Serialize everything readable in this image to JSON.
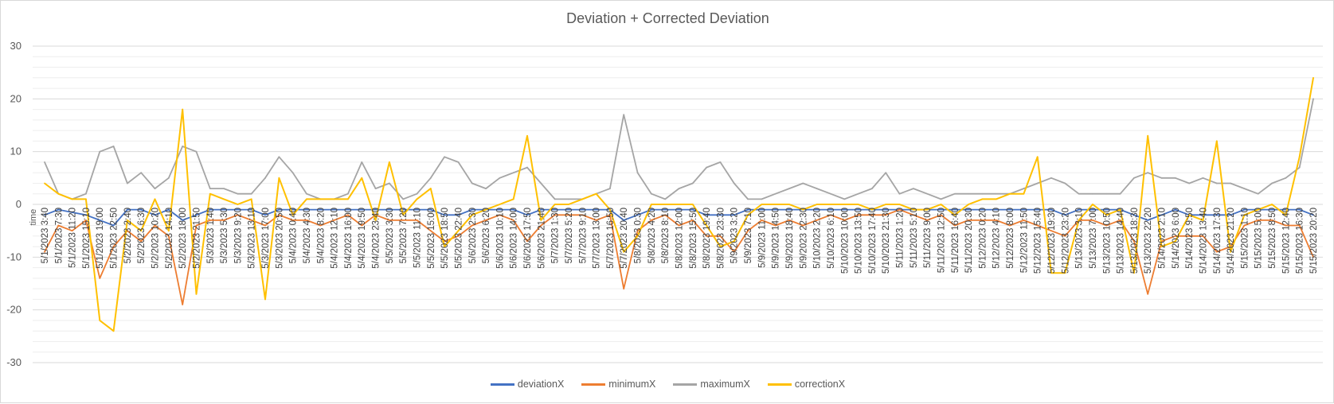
{
  "chart_data": {
    "type": "line",
    "title": "Deviation + Corrected Deviation",
    "xlabel": "time",
    "ylabel": "",
    "ylim": [
      -30,
      30
    ],
    "yticks": [
      30,
      20,
      10,
      0,
      -10,
      -20,
      -30
    ],
    "grid": true,
    "legend_position": "bottom",
    "x": [
      "5/1/2023 3:40",
      "5/1/2023 7:30",
      "5/1/2023 11:20",
      "5/1/2023 15:10",
      "5/1/2023 19:00",
      "5/1/2023 22:50",
      "5/2/2023 2:40",
      "5/2/2023 6:30",
      "5/2/2023 10:20",
      "5/2/2023 14:10",
      "5/2/2023 18:00",
      "5/2/2023 21:50",
      "5/3/2023 1:40",
      "5/3/2023 5:30",
      "5/3/2023 9:20",
      "5/3/2023 13:10",
      "5/3/2023 17:00",
      "5/3/2023 20:50",
      "5/4/2023 0:40",
      "5/4/2023 4:30",
      "5/4/2023 8:20",
      "5/4/2023 12:10",
      "5/4/2023 16:00",
      "5/4/2023 19:50",
      "5/4/2023 23:40",
      "5/5/2023 3:30",
      "5/5/2023 7:20",
      "5/5/2023 11:10",
      "5/5/2023 15:00",
      "5/5/2023 18:50",
      "5/5/2023 22:40",
      "5/6/2023 2:30",
      "5/6/2023 6:20",
      "5/6/2023 10:10",
      "5/6/2023 14:00",
      "5/6/2023 17:50",
      "5/6/2023 21:40",
      "5/7/2023 1:30",
      "5/7/2023 5:20",
      "5/7/2023 9:10",
      "5/7/2023 13:00",
      "5/7/2023 16:50",
      "5/7/2023 20:40",
      "5/8/2023 0:30",
      "5/8/2023 4:20",
      "5/8/2023 8:10",
      "5/8/2023 12:00",
      "5/8/2023 15:50",
      "5/8/2023 19:40",
      "5/8/2023 23:30",
      "5/9/2023 3:20",
      "5/9/2023 7:10",
      "5/9/2023 11:00",
      "5/9/2023 14:50",
      "5/9/2023 18:40",
      "5/9/2023 22:30",
      "5/10/2023 2:20",
      "5/10/2023 6:10",
      "5/10/2023 10:00",
      "5/10/2023 13:50",
      "5/10/2023 17:40",
      "5/10/2023 21:30",
      "5/11/2023 1:20",
      "5/11/2023 5:10",
      "5/11/2023 9:00",
      "5/11/2023 12:50",
      "5/11/2023 16:40",
      "5/11/2023 20:30",
      "5/12/2023 0:20",
      "5/12/2023 4:10",
      "5/12/2023 8:00",
      "5/12/2023 11:50",
      "5/12/2023 15:40",
      "5/12/2023 19:30",
      "5/12/2023 23:20",
      "5/13/2023 3:10",
      "5/13/2023 7:00",
      "5/13/2023 10:50",
      "5/13/2023 14:40",
      "5/13/2023 18:30",
      "5/13/2023 22:20",
      "5/14/2023 2:10",
      "5/14/2023 6:00",
      "5/14/2023 9:50",
      "5/14/2023 13:40",
      "5/14/2023 17:30",
      "5/14/2023 21:20",
      "5/15/2023 1:10",
      "5/15/2023 5:00",
      "5/15/2023 8:50",
      "5/15/2023 12:40",
      "5/15/2023 16:30",
      "5/15/2023 20:20"
    ],
    "series": [
      {
        "name": "deviationX",
        "color": "#4472c4",
        "values": [
          -2,
          -1,
          -1.5,
          -2,
          -3,
          -4,
          -1,
          -1,
          -2,
          -1,
          -3,
          -2,
          -1,
          -1,
          -1,
          -1,
          -2,
          -1,
          -1,
          -1,
          -1,
          -1,
          -1,
          -1,
          -1,
          -1,
          -1,
          -1,
          -1,
          -2,
          -2,
          -1,
          -1,
          -1,
          -1,
          -2,
          -1,
          -1,
          -1,
          -1,
          -1,
          -1,
          -3,
          -2,
          -1,
          -1,
          -1,
          -1,
          -2,
          -2,
          -2,
          -1,
          -1,
          -1,
          -1,
          -1,
          -1,
          -1,
          -1,
          -1,
          -1,
          -1,
          -1,
          -1,
          -1,
          -1,
          -1,
          -1,
          -1,
          -1,
          -1,
          -1,
          -1,
          -1,
          -2,
          -1,
          -1,
          -1,
          -1,
          -2,
          -3,
          -2,
          -1,
          -2,
          -2,
          -2,
          -2,
          -1,
          -1,
          -1,
          -1,
          -1,
          -2
        ]
      },
      {
        "name": "minimumX",
        "color": "#ed7d31",
        "values": [
          -9,
          -4,
          -5,
          -3,
          -14,
          -8,
          -5,
          -7,
          -4,
          -6,
          -19,
          -4,
          -3,
          -3,
          -2,
          -3,
          -4,
          -2,
          -3,
          -3,
          -4,
          -3,
          -2,
          -4,
          -2,
          -3,
          -3,
          -3,
          -5,
          -7,
          -6,
          -4,
          -3,
          -2,
          -3,
          -7,
          -4,
          -2,
          -2,
          -2,
          -3,
          -2,
          -16,
          -5,
          -3,
          -2,
          -4,
          -3,
          -6,
          -6,
          -9,
          -5,
          -3,
          -4,
          -3,
          -4,
          -3,
          -2,
          -3,
          -2,
          -2,
          -2,
          -1,
          -2,
          -3,
          -2,
          -4,
          -3,
          -3,
          -3,
          -4,
          -3,
          -4,
          -5,
          -6,
          -3,
          -3,
          -4,
          -3,
          -7,
          -17,
          -7,
          -6,
          -6,
          -6,
          -9,
          -8,
          -4,
          -3,
          -3,
          -4,
          -4,
          -10
        ]
      },
      {
        "name": "maximumX",
        "color": "#a5a5a5",
        "values": [
          8,
          2,
          1,
          2,
          10,
          11,
          4,
          6,
          3,
          5,
          11,
          10,
          3,
          3,
          2,
          2,
          5,
          9,
          6,
          2,
          1,
          1,
          2,
          8,
          3,
          4,
          1,
          2,
          5,
          9,
          8,
          4,
          3,
          5,
          6,
          7,
          4,
          1,
          1,
          1,
          2,
          3,
          17,
          6,
          2,
          1,
          3,
          4,
          7,
          8,
          4,
          1,
          1,
          2,
          3,
          4,
          3,
          2,
          1,
          2,
          3,
          6,
          2,
          3,
          2,
          1,
          2,
          2,
          2,
          2,
          2,
          3,
          4,
          5,
          4,
          2,
          2,
          2,
          2,
          5,
          6,
          5,
          5,
          4,
          5,
          4,
          4,
          3,
          2,
          4,
          5,
          7,
          20
        ]
      },
      {
        "name": "correctionX",
        "color": "#ffc000",
        "values": [
          4,
          2,
          1,
          1,
          -22,
          -24,
          -3,
          -5,
          1,
          -5,
          18,
          -17,
          2,
          1,
          0,
          1,
          -18,
          5,
          -2,
          1,
          1,
          1,
          1,
          5,
          -3,
          8,
          -2,
          1,
          3,
          -8,
          -5,
          -2,
          -1,
          0,
          1,
          13,
          -3,
          0,
          0,
          1,
          2,
          -1,
          -9,
          -6,
          0,
          0,
          0,
          0,
          -4,
          -8,
          -7,
          -2,
          0,
          0,
          0,
          -1,
          0,
          0,
          0,
          0,
          -1,
          0,
          0,
          -1,
          -1,
          0,
          -2,
          0,
          1,
          1,
          2,
          2,
          9,
          -13,
          -13,
          -3,
          0,
          -2,
          -1,
          -13,
          13,
          -8,
          -7,
          -2,
          -3,
          12,
          -9,
          -2,
          -1,
          0,
          -2,
          9,
          24
        ]
      }
    ]
  }
}
